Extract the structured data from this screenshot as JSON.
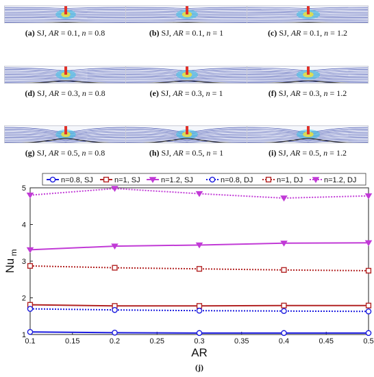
{
  "panels": [
    {
      "letter": "(a)",
      "text": "SJ, AR = 0.1, n = 0.8",
      "ar": "0.1",
      "n": "0.8"
    },
    {
      "letter": "(b)",
      "text": "SJ, AR = 0.1, n = 1",
      "ar": "0.1",
      "n": "1"
    },
    {
      "letter": "(c)",
      "text": "SJ, AR = 0.1, n = 1.2",
      "ar": "0.1",
      "n": "1.2"
    },
    {
      "letter": "(d)",
      "text": "SJ, AR = 0.3, n = 0.8",
      "ar": "0.3",
      "n": "0.8"
    },
    {
      "letter": "(e)",
      "text": "SJ, AR = 0.3, n = 1",
      "ar": "0.3",
      "n": "1"
    },
    {
      "letter": "(f)",
      "text": "SJ, AR = 0.3, n = 1.2",
      "ar": "0.3",
      "n": "1.2"
    },
    {
      "letter": "(g)",
      "text": "SJ, AR = 0.5, n = 0.8",
      "ar": "0.5",
      "n": "0.8"
    },
    {
      "letter": "(h)",
      "text": "SJ, AR = 0.5, n = 1",
      "ar": "0.5",
      "n": "1"
    },
    {
      "letter": "(i)",
      "text": "SJ, AR = 0.5, n = 1.2",
      "ar": "0.5",
      "n": "1.2"
    }
  ],
  "chart_data": {
    "type": "line",
    "x": [
      0.1,
      0.2,
      0.3,
      0.4,
      0.5
    ],
    "xlabel": "AR",
    "ylabel": "Nu",
    "ylabel_sub": "m",
    "xlim": [
      0.1,
      0.5
    ],
    "ylim": [
      1,
      5
    ],
    "xticks": [
      "0.1",
      "0.15",
      "0.2",
      "0.25",
      "0.3",
      "0.35",
      "0.4",
      "0.45",
      "0.5"
    ],
    "yticks": [
      "1",
      "2",
      "3",
      "4",
      "5"
    ],
    "grid": false,
    "legend_position": "top",
    "caption": "(j)",
    "series": [
      {
        "name": "n=0.8, SJ",
        "values": [
          1.07,
          1.05,
          1.04,
          1.04,
          1.04
        ],
        "color": "#1a1adf",
        "dash": "solid",
        "marker": "circle"
      },
      {
        "name": "n=1, SJ",
        "values": [
          1.81,
          1.78,
          1.78,
          1.79,
          1.79
        ],
        "color": "#b22222",
        "dash": "solid",
        "marker": "square"
      },
      {
        "name": "n=1.2, SJ",
        "values": [
          3.31,
          3.41,
          3.44,
          3.49,
          3.5
        ],
        "color": "#c13ad6",
        "dash": "solid",
        "marker": "triangle"
      },
      {
        "name": "n=0.8, DJ",
        "values": [
          1.7,
          1.67,
          1.65,
          1.64,
          1.63
        ],
        "color": "#1a1adf",
        "dash": "dotted",
        "marker": "circle"
      },
      {
        "name": "n=1, DJ",
        "values": [
          2.87,
          2.82,
          2.79,
          2.76,
          2.74
        ],
        "color": "#b22222",
        "dash": "dotted",
        "marker": "square"
      },
      {
        "name": "n=1.2, DJ",
        "values": [
          4.8,
          4.98,
          4.84,
          4.72,
          4.78
        ],
        "color": "#c13ad6",
        "dash": "dotted",
        "marker": "triangle"
      }
    ]
  }
}
